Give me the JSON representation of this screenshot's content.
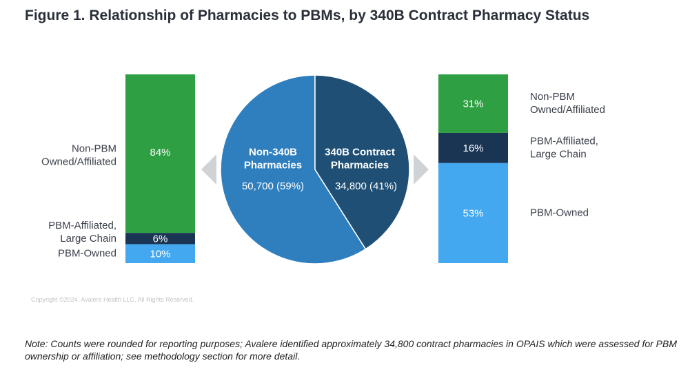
{
  "title": "Figure 1. Relationship of Pharmacies to PBMs, by 340B Contract Pharmacy Status",
  "copyright": "Copyright ©2024. Avalere Health LLC. All Rights Reserved.",
  "note": "Note: Counts were rounded for reporting purposes; Avalere identified approximately 34,800 contract pharmacies in OPAIS which were assessed for PBM ownership or affiliation; see methodology section for more detail.",
  "colors": {
    "green": "#2ea043",
    "navy": "#1a3554",
    "light_blue": "#44a8f0",
    "pie_non340b": "#2f7fbf",
    "pie_340b": "#1f4f75",
    "arrow": "#d0d3d6"
  },
  "chart_data": [
    {
      "type": "bar",
      "stacked": true,
      "name": "Non-340B Pharmacies",
      "segments": [
        {
          "label": "Non-PBM\nOwned/Affiliated",
          "value": 84,
          "value_label": "84%",
          "color": "#2ea043"
        },
        {
          "label": "PBM-Affiliated,\nLarge Chain",
          "value": 6,
          "value_label": "6%",
          "color": "#1a3554"
        },
        {
          "label": "PBM-Owned",
          "value": 10,
          "value_label": "10%",
          "color": "#44a8f0"
        }
      ]
    },
    {
      "type": "pie",
      "slices": [
        {
          "label": "Non-340B\nPharmacies",
          "count": "50,700 (59%)",
          "value": 59,
          "color": "#2f7fbf"
        },
        {
          "label": "340B Contract\nPharmacies",
          "count": "34,800 (41%)",
          "value": 41,
          "color": "#1f4f75"
        }
      ]
    },
    {
      "type": "bar",
      "stacked": true,
      "name": "340B Contract Pharmacies",
      "segments": [
        {
          "label": "Non-PBM\nOwned/Affiliated",
          "value": 31,
          "value_label": "31%",
          "color": "#2ea043"
        },
        {
          "label": "PBM-Affiliated,\nLarge Chain",
          "value": 16,
          "value_label": "16%",
          "color": "#1a3554"
        },
        {
          "label": "PBM-Owned",
          "value": 53,
          "value_label": "53%",
          "color": "#44a8f0"
        }
      ]
    }
  ]
}
